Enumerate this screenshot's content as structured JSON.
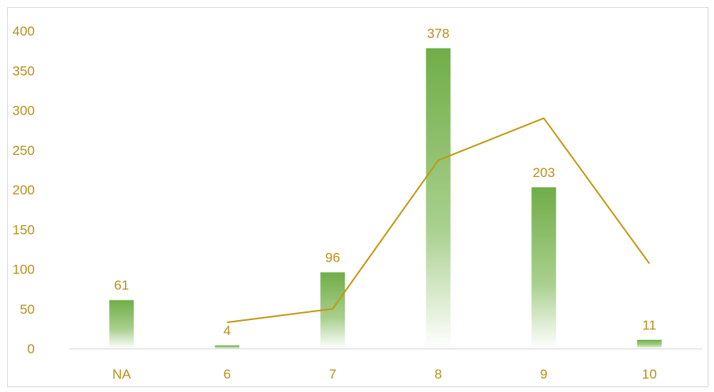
{
  "chart_data": {
    "type": "bar",
    "categories": [
      "NA",
      "6",
      "7",
      "8",
      "9",
      "10"
    ],
    "series": [
      {
        "type": "bar",
        "values": [
          61,
          4,
          96,
          378,
          203,
          11
        ],
        "data_labels": [
          "61",
          "4",
          "96",
          "378",
          "203",
          "11"
        ]
      },
      {
        "type": "line",
        "values": [
          null,
          33,
          50,
          237,
          290,
          107
        ]
      }
    ],
    "title": "",
    "xlabel": "",
    "ylabel": "",
    "ylim": [
      0,
      400
    ],
    "yticks": [
      0,
      50,
      100,
      150,
      200,
      250,
      300,
      350,
      400
    ],
    "grid": false,
    "legend": "none",
    "colors": {
      "bar_top": "#70ad47",
      "bar_bottom": "#ffffff",
      "line": "#c09a14",
      "text": "#b8901c",
      "axis": "#d9d9d9"
    }
  }
}
